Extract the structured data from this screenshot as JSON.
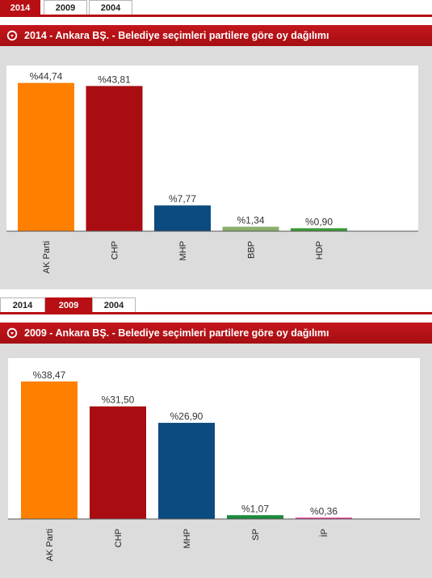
{
  "panels": [
    {
      "tabs": [
        {
          "label": "2014",
          "active": true
        },
        {
          "label": "2009",
          "active": false
        },
        {
          "label": "2004",
          "active": false
        }
      ],
      "title": "2014 - Ankara BŞ. - Belediye seçimleri partilere göre oy dağılımı"
    },
    {
      "tabs": [
        {
          "label": "2014",
          "active": false
        },
        {
          "label": "2009",
          "active": true
        },
        {
          "label": "2004",
          "active": false
        }
      ],
      "title": "2009 - Ankara BŞ. - Belediye seçimleri partilere göre oy dağılımı"
    }
  ],
  "chart_data": [
    {
      "type": "bar",
      "title": "2014 - Ankara BŞ. - Belediye seçimleri partilere göre oy dağılımı",
      "categories": [
        "AK Parti",
        "CHP",
        "MHP",
        "BBP",
        "HDP"
      ],
      "values": [
        44.74,
        43.81,
        7.77,
        1.34,
        0.9
      ],
      "value_labels": [
        "%44,74",
        "%43,81",
        "%7,77",
        "%1,34",
        "%0,90"
      ],
      "colors": [
        "#ff7f00",
        "#a90d12",
        "#0c4b80",
        "#8aaf6a",
        "#3a9b38"
      ],
      "ylim": [
        0,
        50
      ],
      "grid": false
    },
    {
      "type": "bar",
      "title": "2009 - Ankara BŞ. - Belediye seçimleri partilere göre oy dağılımı",
      "categories": [
        "AK Parti",
        "CHP",
        "MHP",
        "SP",
        "İP"
      ],
      "values": [
        38.47,
        31.5,
        26.9,
        1.07,
        0.36
      ],
      "value_labels": [
        "%38,47",
        "%31,50",
        "%26,90",
        "%1,07",
        "%0,36"
      ],
      "colors": [
        "#ff7f00",
        "#a90d12",
        "#0c4b80",
        "#1a8a3c",
        "#e8248a"
      ],
      "ylim": [
        0,
        45
      ],
      "grid": false
    }
  ]
}
